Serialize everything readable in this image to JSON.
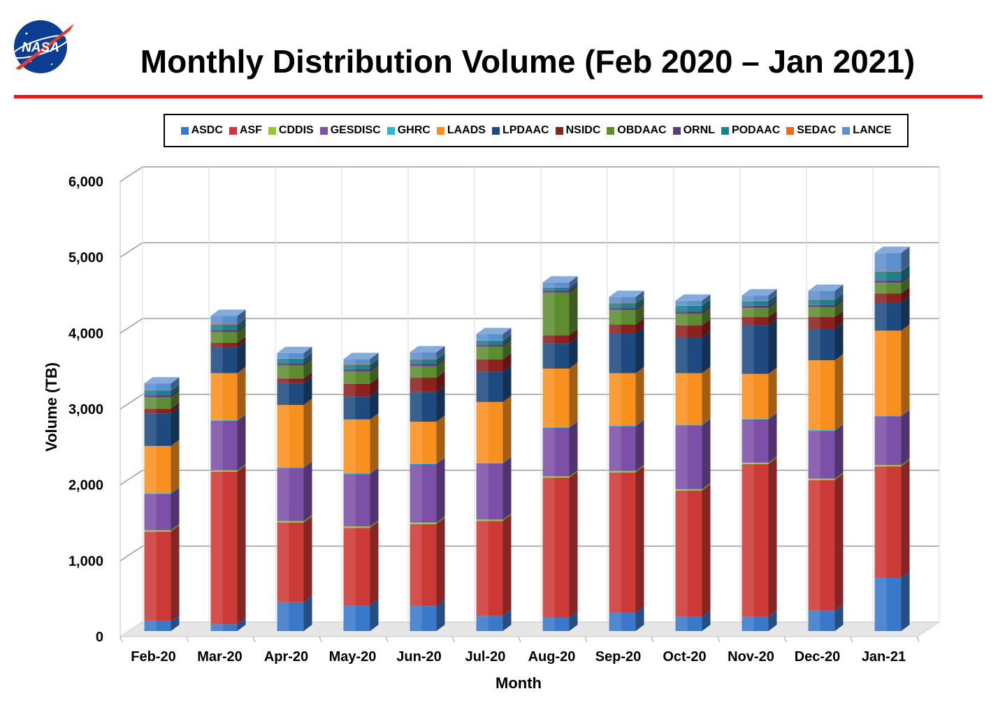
{
  "header": {
    "title": "Monthly Distribution Volume (Feb 2020 – Jan 2021)",
    "logo_text": "NASA",
    "rule_color": "#e51b1b"
  },
  "chart_data": {
    "type": "bar",
    "stacked": true,
    "title": "Monthly Distribution Volume (Feb 2020 – Jan 2021)",
    "xlabel": "Month",
    "ylabel": "Volume (TB)",
    "ylim": [
      0,
      6000
    ],
    "y_ticks": [
      "0",
      "1,000",
      "2,000",
      "3,000",
      "4,000",
      "5,000",
      "6,000"
    ],
    "grid": true,
    "legend_position": "top",
    "categories": [
      "Feb-20",
      "Mar-20",
      "Apr-20",
      "May-20",
      "Jun-20",
      "Jul-20",
      "Aug-20",
      "Sep-20",
      "Oct-20",
      "Nov-20",
      "Dec-20",
      "Jan-21"
    ],
    "series": [
      {
        "name": "ASDC",
        "color": "#3a78c9",
        "values": [
          130,
          90,
          380,
          340,
          330,
          200,
          180,
          240,
          190,
          190,
          270,
          700
        ]
      },
      {
        "name": "ASF",
        "color": "#cc3a37",
        "values": [
          1180,
          2010,
          1050,
          1020,
          1080,
          1250,
          1840,
          1850,
          1660,
          2010,
          1720,
          1470
        ]
      },
      {
        "name": "CDDIS",
        "color": "#98c43a",
        "values": [
          20,
          20,
          20,
          20,
          20,
          20,
          20,
          20,
          20,
          20,
          20,
          20
        ]
      },
      {
        "name": "GESDISC",
        "color": "#7d50a8",
        "values": [
          480,
          650,
          700,
          690,
          770,
          740,
          640,
          590,
          840,
          570,
          630,
          640
        ]
      },
      {
        "name": "GHRC",
        "color": "#39b2cc",
        "values": [
          10,
          10,
          10,
          10,
          10,
          10,
          10,
          10,
          10,
          10,
          10,
          10
        ]
      },
      {
        "name": "LAADS",
        "color": "#f7901e",
        "values": [
          620,
          620,
          820,
          710,
          550,
          800,
          770,
          690,
          680,
          590,
          920,
          1120
        ]
      },
      {
        "name": "LPDAAC",
        "color": "#1f4a80",
        "values": [
          430,
          340,
          290,
          300,
          390,
          400,
          330,
          520,
          470,
          640,
          410,
          370
        ]
      },
      {
        "name": "NSIDC",
        "color": "#8c2220",
        "values": [
          60,
          60,
          60,
          170,
          190,
          160,
          110,
          120,
          160,
          110,
          160,
          120
        ]
      },
      {
        "name": "OBDAAC",
        "color": "#5e8c31",
        "values": [
          150,
          140,
          170,
          160,
          150,
          170,
          560,
          190,
          150,
          120,
          130,
          140
        ]
      },
      {
        "name": "ORNL",
        "color": "#5c3b80",
        "values": [
          30,
          30,
          30,
          30,
          30,
          30,
          30,
          30,
          30,
          30,
          30,
          30
        ]
      },
      {
        "name": "PODAAC",
        "color": "#1f7f8c",
        "values": [
          60,
          70,
          60,
          60,
          60,
          50,
          40,
          60,
          80,
          60,
          70,
          120
        ]
      },
      {
        "name": "SEDAC",
        "color": "#e56c1a",
        "values": [
          5,
          5,
          5,
          5,
          5,
          5,
          5,
          5,
          5,
          5,
          5,
          5
        ]
      },
      {
        "name": "LANCE",
        "color": "#5c8fd0",
        "values": [
          90,
          110,
          70,
          70,
          90,
          80,
          60,
          80,
          60,
          70,
          110,
          240
        ]
      }
    ]
  }
}
